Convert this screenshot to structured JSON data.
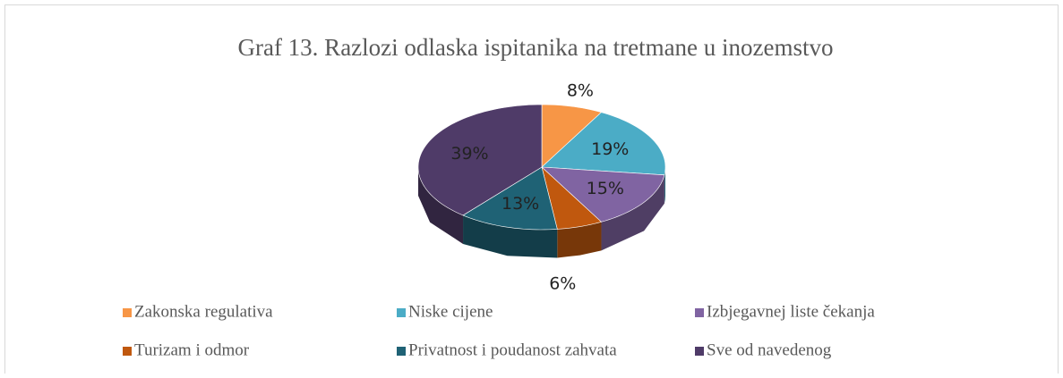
{
  "chart_data": {
    "type": "pie",
    "title": "Graf 13. Razlozi odlaska ispitanika na tretmane u inozemstvo",
    "categories": [
      "Zakonska regulativa",
      "Niske cijene",
      "Izbjegavnej liste čekanja",
      "Turizam i odmor",
      "Privatnost i poudanost zahvata",
      "Sve od navedenog"
    ],
    "values": [
      8,
      19,
      15,
      6,
      13,
      39
    ],
    "value_labels": [
      "8%",
      "19%",
      "15%",
      "6%",
      "13%",
      "39%"
    ],
    "colors": [
      "#f79646",
      "#4bacc6",
      "#8064a2",
      "#c0580e",
      "#1f6275",
      "#4f3b68"
    ],
    "legend": "bottom"
  }
}
